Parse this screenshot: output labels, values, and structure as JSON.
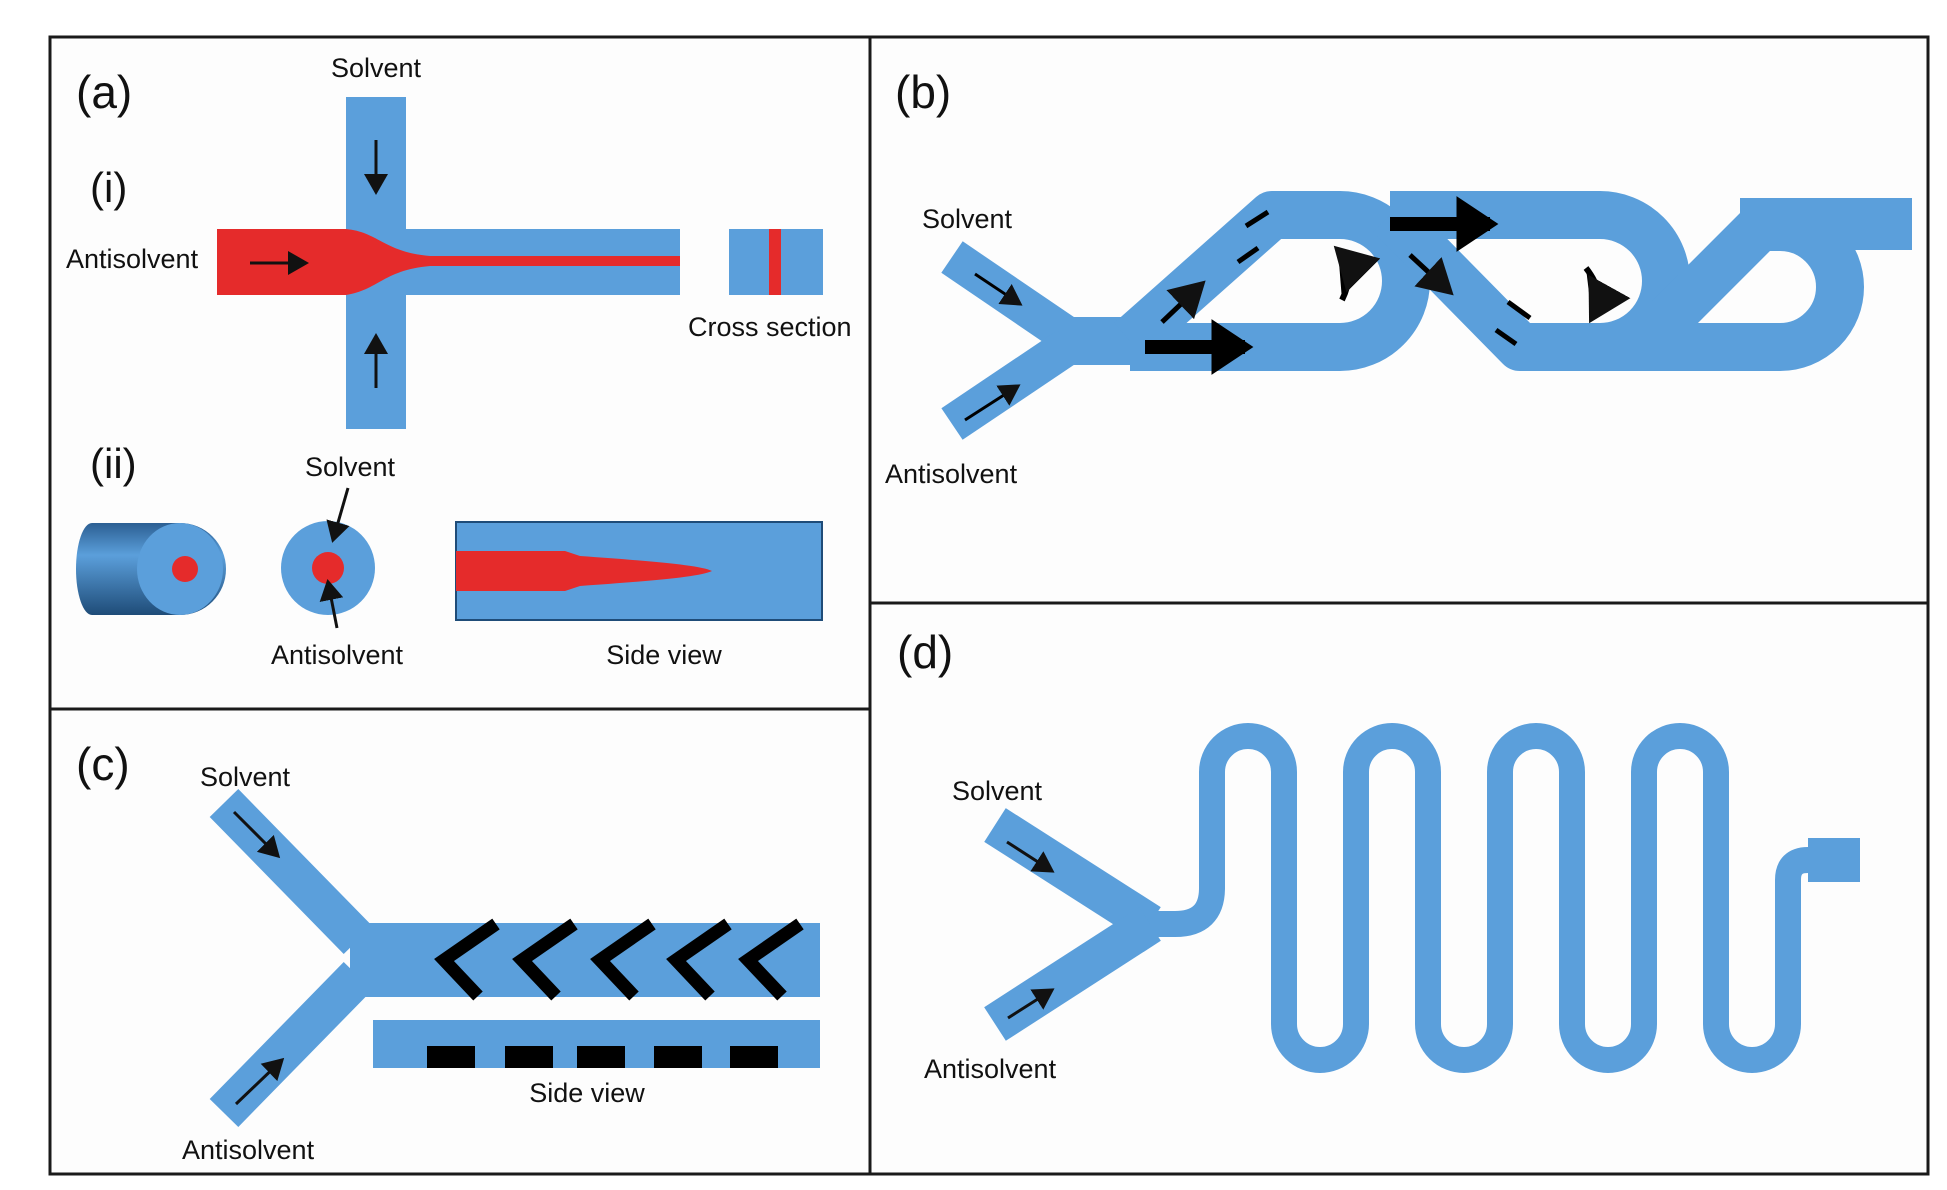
{
  "colors": {
    "channel": "#5b9fdb",
    "antisolvent_stream": "#e52b2b",
    "mixer": "#000000",
    "border": "#1a1a1a",
    "panel_bg": "#fdfdfd"
  },
  "panels": {
    "a": {
      "label": "(a)",
      "sub_i": "(i)",
      "sub_ii": "(ii)",
      "solvent_top": "Solvent",
      "antisolvent_left": "Antisolvent",
      "cross_section": "Cross section",
      "solvent_ii": "Solvent",
      "antisolvent_ii": "Antisolvent",
      "side_view": "Side view"
    },
    "b": {
      "label": "(b)",
      "solvent": "Solvent",
      "antisolvent": "Antisolvent"
    },
    "c": {
      "label": "(c)",
      "solvent": "Solvent",
      "antisolvent": "Antisolvent",
      "side_view": "Side view"
    },
    "d": {
      "label": "(d)",
      "solvent": "Solvent",
      "antisolvent": "Antisolvent"
    }
  }
}
